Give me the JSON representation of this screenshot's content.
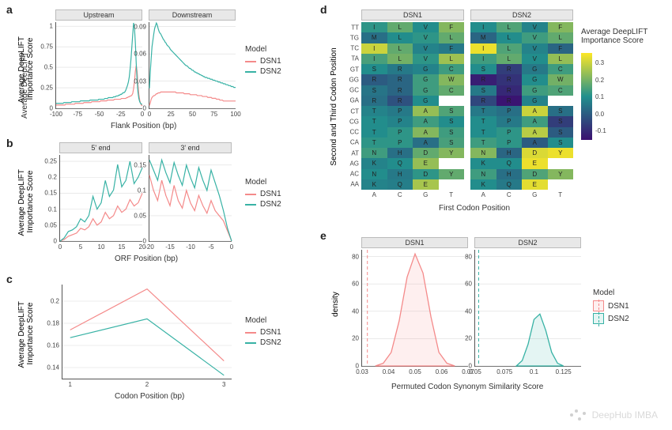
{
  "colors": {
    "dsn1": "#f48a8a",
    "dsn2": "#38b2a5",
    "grid": "#dddddd",
    "axis": "#555555",
    "strip_bg": "#e8e8e8",
    "heatmap_low": "#3b0f70",
    "heatmap_mid": "#21908d",
    "heatmap_high": "#fde725",
    "heatmap_na": "#ffffff"
  },
  "legend_model": {
    "title": "Model",
    "items": [
      "DSN1",
      "DSN2"
    ]
  },
  "panel_a": {
    "label": "a",
    "y_label": "Average DeepLIFT\nImportance Score",
    "x_label": "Flank Position (bp)",
    "facets": [
      {
        "title": "Upstream",
        "xlim": [
          -100,
          0
        ],
        "xticks": [
          -100,
          -75,
          -50,
          -25,
          0
        ],
        "ylim": [
          0,
          1.05
        ],
        "yticks": [
          0.0,
          0.25,
          0.5,
          0.75,
          1.0
        ],
        "series": {
          "dsn1": [
            0.04,
            0.04,
            0.04,
            0.04,
            0.04,
            0.04,
            0.04,
            0.04,
            0.04,
            0.04,
            0.04,
            0.05,
            0.05,
            0.05,
            0.05,
            0.05,
            0.05,
            0.05,
            0.05,
            0.05,
            0.05,
            0.05,
            0.06,
            0.06,
            0.06,
            0.06,
            0.06,
            0.06,
            0.06,
            0.06,
            0.06,
            0.06,
            0.07,
            0.07,
            0.07,
            0.07,
            0.07,
            0.07,
            0.07,
            0.07,
            0.07,
            0.08,
            0.08,
            0.08,
            0.08,
            0.08,
            0.08,
            0.08,
            0.08,
            0.08,
            0.08,
            0.09,
            0.09,
            0.09,
            0.09,
            0.09,
            0.09,
            0.09,
            0.09,
            0.1,
            0.1,
            0.1,
            0.1,
            0.1,
            0.1,
            0.1,
            0.1,
            0.11,
            0.11,
            0.11,
            0.11,
            0.11,
            0.11,
            0.11,
            0.11,
            0.12,
            0.12,
            0.12,
            0.12,
            0.12,
            0.12,
            0.13,
            0.13,
            0.14,
            0.14,
            0.15,
            0.15,
            0.16,
            0.18,
            0.24,
            0.33,
            0.45,
            0.52,
            0.45,
            0.29,
            0.17,
            0.1,
            0.06,
            0.04,
            0.03
          ],
          "dsn2": [
            0.06,
            0.06,
            0.06,
            0.06,
            0.06,
            0.06,
            0.06,
            0.06,
            0.06,
            0.07,
            0.07,
            0.07,
            0.07,
            0.07,
            0.07,
            0.07,
            0.07,
            0.07,
            0.08,
            0.08,
            0.08,
            0.08,
            0.08,
            0.08,
            0.08,
            0.08,
            0.08,
            0.08,
            0.09,
            0.09,
            0.09,
            0.09,
            0.09,
            0.09,
            0.09,
            0.09,
            0.09,
            0.09,
            0.09,
            0.1,
            0.1,
            0.1,
            0.1,
            0.1,
            0.1,
            0.1,
            0.1,
            0.1,
            0.1,
            0.11,
            0.11,
            0.11,
            0.11,
            0.11,
            0.11,
            0.11,
            0.12,
            0.12,
            0.12,
            0.12,
            0.13,
            0.13,
            0.13,
            0.13,
            0.13,
            0.13,
            0.14,
            0.14,
            0.14,
            0.15,
            0.15,
            0.15,
            0.16,
            0.16,
            0.17,
            0.17,
            0.18,
            0.19,
            0.19,
            0.2,
            0.22,
            0.25,
            0.28,
            0.32,
            0.38,
            0.48,
            0.6,
            0.75,
            0.9,
            1.04,
            0.98,
            0.8,
            0.55,
            0.35,
            0.2,
            0.12,
            0.08,
            0.06,
            0.05,
            0.05
          ]
        }
      },
      {
        "title": "Downstream",
        "xlim": [
          0,
          100
        ],
        "xticks": [
          0,
          25,
          50,
          75,
          100
        ],
        "ylim": [
          0,
          0.095
        ],
        "yticks": [
          0.0,
          0.03,
          0.06,
          0.09
        ],
        "series": {
          "dsn1": [
            0.003,
            0.006,
            0.01,
            0.012,
            0.013,
            0.014,
            0.014,
            0.015,
            0.016,
            0.016,
            0.017,
            0.017,
            0.017,
            0.018,
            0.018,
            0.018,
            0.018,
            0.018,
            0.018,
            0.018,
            0.018,
            0.018,
            0.018,
            0.018,
            0.018,
            0.018,
            0.018,
            0.018,
            0.018,
            0.018,
            0.018,
            0.017,
            0.017,
            0.017,
            0.017,
            0.017,
            0.017,
            0.017,
            0.017,
            0.017,
            0.016,
            0.016,
            0.016,
            0.016,
            0.016,
            0.016,
            0.016,
            0.015,
            0.015,
            0.015,
            0.015,
            0.015,
            0.015,
            0.015,
            0.015,
            0.014,
            0.014,
            0.014,
            0.014,
            0.014,
            0.014,
            0.013,
            0.013,
            0.013,
            0.013,
            0.013,
            0.013,
            0.012,
            0.012,
            0.012,
            0.012,
            0.012,
            0.011,
            0.011,
            0.011,
            0.011,
            0.011,
            0.01,
            0.01,
            0.01,
            0.01,
            0.009,
            0.009,
            0.009,
            0.009,
            0.008,
            0.008,
            0.008,
            0.008,
            0.008,
            0.008,
            0.008,
            0.008,
            0.008,
            0.008,
            0.008,
            0.008,
            0.008,
            0.008,
            0.008
          ],
          "dsn2": [
            0.022,
            0.04,
            0.055,
            0.068,
            0.075,
            0.082,
            0.088,
            0.091,
            0.094,
            0.092,
            0.088,
            0.085,
            0.083,
            0.082,
            0.08,
            0.078,
            0.076,
            0.075,
            0.073,
            0.072,
            0.07,
            0.069,
            0.068,
            0.067,
            0.065,
            0.064,
            0.063,
            0.062,
            0.061,
            0.06,
            0.059,
            0.058,
            0.057,
            0.056,
            0.055,
            0.054,
            0.053,
            0.052,
            0.051,
            0.05,
            0.049,
            0.048,
            0.047,
            0.047,
            0.046,
            0.045,
            0.044,
            0.044,
            0.043,
            0.042,
            0.042,
            0.041,
            0.04,
            0.04,
            0.039,
            0.039,
            0.038,
            0.038,
            0.037,
            0.037,
            0.036,
            0.036,
            0.035,
            0.035,
            0.034,
            0.034,
            0.034,
            0.033,
            0.033,
            0.033,
            0.032,
            0.032,
            0.032,
            0.031,
            0.031,
            0.031,
            0.03,
            0.03,
            0.03,
            0.029,
            0.029,
            0.029,
            0.028,
            0.028,
            0.028,
            0.027,
            0.027,
            0.027,
            0.026,
            0.026,
            0.026,
            0.025,
            0.025,
            0.025,
            0.024,
            0.024,
            0.024,
            0.023,
            0.023,
            0.023
          ]
        }
      }
    ]
  },
  "panel_b": {
    "label": "b",
    "y_label": "Average DeepLIFT\nImportance Score",
    "x_label": "ORF Position (bp)",
    "facets": [
      {
        "title": "5' end",
        "xlim": [
          0,
          20
        ],
        "xticks": [
          0,
          5,
          10,
          15,
          20
        ],
        "ylim": [
          0,
          0.27
        ],
        "yticks": [
          0.0,
          0.05,
          0.1,
          0.15,
          0.2,
          0.25
        ],
        "series": {
          "dsn1": [
            0.0,
            0.005,
            0.015,
            0.02,
            0.025,
            0.04,
            0.035,
            0.045,
            0.07,
            0.05,
            0.06,
            0.09,
            0.07,
            0.08,
            0.11,
            0.09,
            0.1,
            0.13,
            0.11,
            0.12,
            0.15
          ],
          "dsn2": [
            0.0,
            0.01,
            0.03,
            0.035,
            0.045,
            0.07,
            0.06,
            0.08,
            0.14,
            0.1,
            0.12,
            0.19,
            0.14,
            0.16,
            0.24,
            0.17,
            0.19,
            0.25,
            0.18,
            0.2,
            0.23
          ]
        }
      },
      {
        "title": "3' end",
        "xlim": [
          -20,
          0
        ],
        "xticks": [
          -20,
          -15,
          -10,
          -5,
          0
        ],
        "ylim": [
          0,
          0.17
        ],
        "yticks": [
          0.0,
          0.05,
          0.1,
          0.15
        ],
        "series": {
          "dsn1": [
            0.13,
            0.1,
            0.08,
            0.12,
            0.09,
            0.07,
            0.11,
            0.08,
            0.065,
            0.1,
            0.075,
            0.06,
            0.09,
            0.07,
            0.055,
            0.08,
            0.06,
            0.05,
            0.04,
            0.02,
            0.0
          ],
          "dsn2": [
            0.16,
            0.14,
            0.12,
            0.16,
            0.135,
            0.115,
            0.155,
            0.13,
            0.11,
            0.15,
            0.125,
            0.105,
            0.145,
            0.12,
            0.1,
            0.14,
            0.115,
            0.09,
            0.06,
            0.025,
            0.0
          ]
        }
      }
    ]
  },
  "panel_c": {
    "label": "c",
    "y_label": "Average DeepLIFT\nImportance Score",
    "x_label": "Codon Position (bp)",
    "xlim": [
      0.9,
      3.1
    ],
    "ylim": [
      0.13,
      0.215
    ],
    "xticks": [
      1,
      2,
      3
    ],
    "yticks": [
      0.14,
      0.16,
      0.18,
      0.2
    ],
    "series": {
      "dsn1": {
        "x": [
          1,
          2,
          3
        ],
        "y": [
          0.174,
          0.211,
          0.146
        ]
      },
      "dsn2": {
        "x": [
          1,
          2,
          3
        ],
        "y": [
          0.167,
          0.184,
          0.133
        ]
      }
    }
  },
  "panel_d": {
    "label": "d",
    "y_label": "Second and Third Codon Position",
    "x_label": "First Codon Position",
    "cbar_title": "Average DeepLIFT\nImportance Score",
    "cbar_ticks": [
      -0.1,
      0.0,
      0.1,
      0.2,
      0.3
    ],
    "facets": [
      "DSN1",
      "DSN2"
    ],
    "x_categories": [
      "A",
      "C",
      "G",
      "T"
    ],
    "y_categories": [
      "TT",
      "TG",
      "TC",
      "TA",
      "GT",
      "GG",
      "GC",
      "GA",
      "CT",
      "CG",
      "CC",
      "CA",
      "AT",
      "AG",
      "AC",
      "AA"
    ],
    "letters": [
      [
        "I",
        "L",
        "V",
        "F"
      ],
      [
        "M",
        "L",
        "V",
        "L"
      ],
      [
        "I",
        "L",
        "V",
        "F"
      ],
      [
        "I",
        "L",
        "V",
        "L"
      ],
      [
        "S",
        "R",
        "G",
        "C"
      ],
      [
        "R",
        "R",
        "G",
        "W"
      ],
      [
        "S",
        "R",
        "G",
        "C"
      ],
      [
        "R",
        "R",
        "G",
        ""
      ],
      [
        "T",
        "P",
        "A",
        "S"
      ],
      [
        "T",
        "P",
        "A",
        "S"
      ],
      [
        "T",
        "P",
        "A",
        "S"
      ],
      [
        "T",
        "P",
        "A",
        "S"
      ],
      [
        "N",
        "H",
        "D",
        "Y"
      ],
      [
        "K",
        "Q",
        "E",
        ""
      ],
      [
        "N",
        "H",
        "D",
        "Y"
      ],
      [
        "K",
        "Q",
        "E",
        ""
      ]
    ],
    "values_dsn1": [
      [
        0.12,
        0.18,
        0.1,
        0.22
      ],
      [
        0.04,
        0.1,
        0.12,
        0.18
      ],
      [
        0.3,
        0.18,
        0.08,
        0.06
      ],
      [
        0.15,
        0.2,
        0.12,
        0.25
      ],
      [
        0.1,
        0.06,
        0.08,
        0.14
      ],
      [
        0.0,
        0.02,
        0.14,
        0.22
      ],
      [
        0.05,
        0.02,
        0.14,
        0.18
      ],
      [
        0.04,
        -0.02,
        0.1,
        null
      ],
      [
        0.08,
        0.06,
        0.24,
        0.16
      ],
      [
        0.1,
        0.08,
        0.14,
        0.1
      ],
      [
        0.1,
        0.12,
        0.22,
        0.14
      ],
      [
        0.12,
        0.12,
        0.04,
        0.15
      ],
      [
        0.14,
        0.04,
        0.18,
        0.22
      ],
      [
        0.08,
        0.1,
        0.24,
        null
      ],
      [
        0.1,
        0.06,
        0.12,
        0.18
      ],
      [
        0.08,
        0.07,
        0.26,
        null
      ]
    ],
    "values_dsn2": [
      [
        0.1,
        0.16,
        0.08,
        0.22
      ],
      [
        0.02,
        0.1,
        0.14,
        0.18
      ],
      [
        0.34,
        0.16,
        0.08,
        0.02
      ],
      [
        0.14,
        0.18,
        0.1,
        0.24
      ],
      [
        0.1,
        -0.06,
        0.06,
        0.14
      ],
      [
        -0.12,
        -0.08,
        0.1,
        0.2
      ],
      [
        0.06,
        -0.1,
        0.14,
        0.16
      ],
      [
        -0.04,
        -0.14,
        0.08,
        null
      ],
      [
        0.06,
        0.04,
        0.3,
        0.04
      ],
      [
        0.1,
        0.06,
        0.14,
        -0.06
      ],
      [
        0.1,
        0.12,
        0.28,
        0.0
      ],
      [
        0.14,
        0.12,
        0.0,
        0.1
      ],
      [
        0.22,
        0.02,
        0.32,
        0.34
      ],
      [
        0.1,
        0.1,
        0.34,
        null
      ],
      [
        0.14,
        0.04,
        0.16,
        0.22
      ],
      [
        0.1,
        0.06,
        0.33,
        null
      ]
    ],
    "value_range": [
      -0.15,
      0.36
    ]
  },
  "panel_e": {
    "label": "e",
    "y_label": "density",
    "x_label": "Permuted Codon Synonym Similarity Score",
    "facets": [
      {
        "title": "DSN1",
        "xlim": [
          0.03,
          0.07
        ],
        "xticks": [
          0.03,
          0.04,
          0.05,
          0.06,
          0.07
        ],
        "ylim": [
          0,
          85
        ],
        "yticks": [
          0,
          20,
          40,
          60,
          80
        ],
        "color_key": "dsn1",
        "vline": 0.032,
        "curve_x": [
          0.035,
          0.038,
          0.041,
          0.044,
          0.047,
          0.05,
          0.053,
          0.056,
          0.059,
          0.062,
          0.065
        ],
        "curve_y": [
          0,
          2,
          10,
          33,
          65,
          82,
          68,
          36,
          10,
          2,
          0
        ]
      },
      {
        "title": "DSN2",
        "xlim": [
          0.05,
          0.14
        ],
        "xticks": [
          0.05,
          0.075,
          0.1,
          0.125
        ],
        "ylim": [
          0,
          85
        ],
        "yticks": [
          0,
          20,
          40,
          60,
          80
        ],
        "color_key": "dsn2",
        "vline": 0.053,
        "curve_x": [
          0.085,
          0.09,
          0.095,
          0.1,
          0.105,
          0.11,
          0.115,
          0.12,
          0.125
        ],
        "curve_y": [
          0,
          4,
          16,
          34,
          38,
          26,
          10,
          2,
          0
        ]
      }
    ]
  },
  "watermark": "DeepHub IMBA"
}
